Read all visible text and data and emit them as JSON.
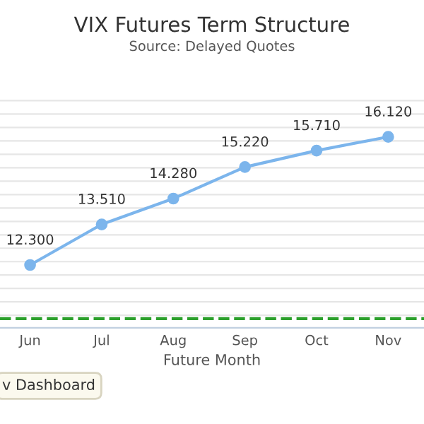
{
  "chart_data": {
    "type": "line",
    "title": "VIX Futures Term Structure",
    "subtitle": "Source: Delayed Quotes",
    "xlabel": "Future Month",
    "categories": [
      "Jun",
      "Jul",
      "Aug",
      "Sep",
      "Oct",
      "Nov"
    ],
    "series": [
      {
        "color": "#7cb5ec",
        "values": [
          12.3,
          13.51,
          14.28,
          15.22,
          15.71,
          16.12
        ],
        "value_labels": [
          "12.300",
          "13.510",
          "14.280",
          "15.220",
          "15.710",
          "16.120"
        ]
      }
    ],
    "ref_lines": [
      {
        "axis": "y",
        "value": 10.7,
        "color": "#2ca02c",
        "line_style": "dashed"
      }
    ],
    "annotations": [
      "v Dashboard"
    ],
    "grid": "y",
    "marker": "circle",
    "line_style": "solid",
    "tick_labels": "x",
    "legend": false
  }
}
